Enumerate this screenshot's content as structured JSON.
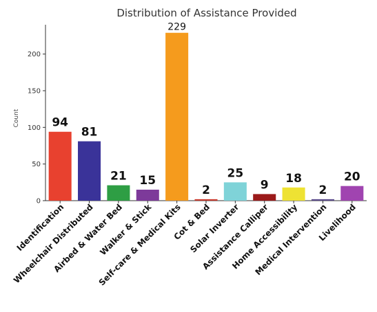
{
  "chart_data": {
    "type": "bar",
    "title": "Distribution of Assistance Provided",
    "xlabel": "",
    "ylabel": "Count",
    "ylim": [
      0,
      240
    ],
    "yticks": [
      0,
      50,
      100,
      150,
      200
    ],
    "grid": false,
    "categories": [
      "Identification",
      "Wheelchair Distributed",
      "Airbed & Water Bed",
      "Walker & Stick",
      "Self-care & Medical Kits",
      "Cot & Bed",
      "Solar Inverter",
      "Assistance Calliper",
      "Home Accessibility",
      "Medical Intervention",
      "Livelihood"
    ],
    "values": [
      94,
      81,
      21,
      15,
      229,
      2,
      25,
      9,
      18,
      2,
      20
    ],
    "data_labels": [
      "94",
      "81",
      "21",
      "15",
      "229",
      "2",
      "25",
      "9",
      "18",
      "2",
      "20"
    ],
    "colors": [
      "#e8412f",
      "#3a3399",
      "#2e9e44",
      "#7d3a9a",
      "#f59b1d",
      "#c83a2e",
      "#7fd3d8",
      "#9b1a1a",
      "#eee233",
      "#5a4a8a",
      "#a044b0"
    ]
  }
}
